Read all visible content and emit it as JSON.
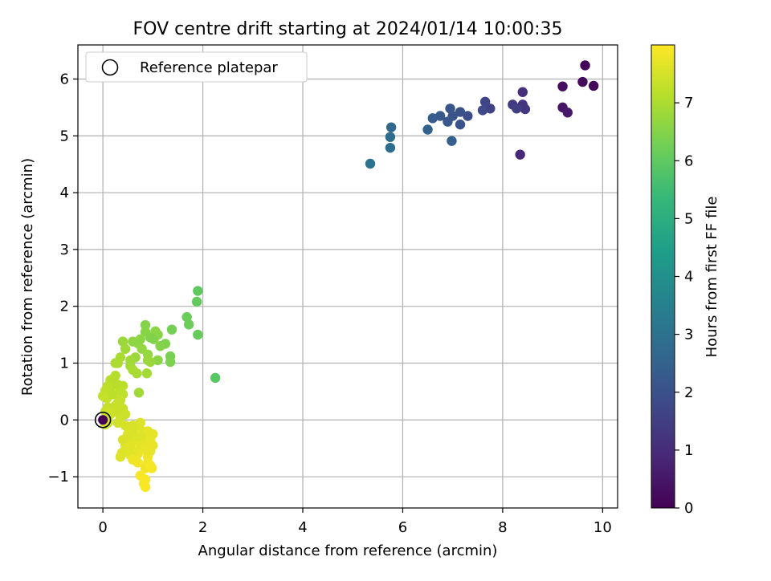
{
  "chart_data": {
    "type": "scatter",
    "title": "FOV centre drift starting at 2024/01/14 10:00:35",
    "xlabel": "Angular distance from reference (arcmin)",
    "ylabel": "Rotation from reference (arcmin)",
    "xlim": [
      -0.5,
      10.3
    ],
    "ylim": [
      -1.55,
      6.6
    ],
    "xticks": [
      0,
      2,
      4,
      6,
      8,
      10
    ],
    "yticks": [
      -1,
      0,
      1,
      2,
      3,
      4,
      5,
      6
    ],
    "xtick_labels": [
      "0",
      "2",
      "4",
      "6",
      "8",
      "10"
    ],
    "ytick_labels": [
      "−1",
      "0",
      "1",
      "2",
      "3",
      "4",
      "5",
      "6"
    ],
    "grid": true,
    "legend": {
      "placement": "top-left",
      "label": "Reference platepar"
    },
    "reference_point": {
      "x": 0,
      "y": 0
    },
    "colorbar": {
      "label": "Hours from first FF file",
      "range": [
        0,
        8
      ],
      "ticks": [
        0,
        1,
        2,
        3,
        4,
        5,
        6,
        7
      ],
      "tick_labels": [
        "0",
        "1",
        "2",
        "3",
        "4",
        "5",
        "6",
        "7"
      ],
      "colormap": "viridis",
      "colors": [
        "#440154",
        "#482878",
        "#3e4989",
        "#31688e",
        "#26828e",
        "#1f9e89",
        "#35b779",
        "#6ece58",
        "#b5de2b",
        "#fde725"
      ]
    },
    "series": [
      {
        "points": [
          [
            9.65,
            6.24,
            0.1
          ],
          [
            9.82,
            5.88,
            0.15
          ],
          [
            9.6,
            5.95,
            0.2
          ],
          [
            9.2,
            5.87,
            0.3
          ],
          [
            9.2,
            5.5,
            0.45
          ],
          [
            9.3,
            5.41,
            0.55
          ],
          [
            8.35,
            4.67,
            0.9
          ],
          [
            8.4,
            5.77,
            1.1
          ],
          [
            8.4,
            5.55,
            1.2
          ],
          [
            8.45,
            5.47,
            1.3
          ],
          [
            8.2,
            5.55,
            1.4
          ],
          [
            8.28,
            5.48,
            1.5
          ],
          [
            7.75,
            5.48,
            1.6
          ],
          [
            7.65,
            5.6,
            1.7
          ],
          [
            7.6,
            5.45,
            1.8
          ],
          [
            7.3,
            5.35,
            1.9
          ],
          [
            7.15,
            5.42,
            2.0
          ],
          [
            7.15,
            5.2,
            2.05
          ],
          [
            7.0,
            5.35,
            2.1
          ],
          [
            6.95,
            5.48,
            2.15
          ],
          [
            6.9,
            5.25,
            2.2
          ],
          [
            6.75,
            5.35,
            2.25
          ],
          [
            6.6,
            5.31,
            2.3
          ],
          [
            6.98,
            4.91,
            2.4
          ],
          [
            6.5,
            5.11,
            2.5
          ],
          [
            5.77,
            5.15,
            2.7
          ],
          [
            5.75,
            4.98,
            2.8
          ],
          [
            5.75,
            4.79,
            2.85
          ],
          [
            5.35,
            4.51,
            3.0
          ],
          [
            2.25,
            0.74,
            5.9
          ],
          [
            1.9,
            2.27,
            6.0
          ],
          [
            1.88,
            2.08,
            6.05
          ],
          [
            1.9,
            1.5,
            6.1
          ],
          [
            1.68,
            1.81,
            6.15
          ],
          [
            1.72,
            1.68,
            6.2
          ],
          [
            1.38,
            1.59,
            6.3
          ],
          [
            1.35,
            1.12,
            6.35
          ],
          [
            1.35,
            1.02,
            6.4
          ],
          [
            1.25,
            1.34,
            6.45
          ],
          [
            1.15,
            1.3,
            6.5
          ],
          [
            1.1,
            1.5,
            6.55
          ],
          [
            1.05,
            1.56,
            6.6
          ],
          [
            1.02,
            1.42,
            6.5
          ],
          [
            1.1,
            1.05,
            6.6
          ],
          [
            0.95,
            1.45,
            6.45
          ],
          [
            0.85,
            1.67,
            6.5
          ],
          [
            0.85,
            1.55,
            6.55
          ],
          [
            0.75,
            1.42,
            6.6
          ],
          [
            0.7,
            1.35,
            6.6
          ],
          [
            0.6,
            1.38,
            6.65
          ],
          [
            0.78,
            1.25,
            6.7
          ],
          [
            0.9,
            1.15,
            6.7
          ],
          [
            0.9,
            1.05,
            6.75
          ],
          [
            0.95,
            1.02,
            6.8
          ],
          [
            0.65,
            1.1,
            6.8
          ],
          [
            0.55,
            1.05,
            6.85
          ],
          [
            0.55,
            0.95,
            6.9
          ],
          [
            0.45,
            1.25,
            6.85
          ],
          [
            0.4,
            1.38,
            6.8
          ],
          [
            0.35,
            1.1,
            6.95
          ],
          [
            0.3,
            1.0,
            7.0
          ],
          [
            0.25,
            1.0,
            7.0
          ],
          [
            0.88,
            0.82,
            6.9
          ],
          [
            0.68,
            0.82,
            6.95
          ],
          [
            0.6,
            0.88,
            6.95
          ],
          [
            0.72,
            0.48,
            6.85
          ],
          [
            0.2,
            0.72,
            7.1
          ],
          [
            0.25,
            0.78,
            7.1
          ],
          [
            0.15,
            0.7,
            7.15
          ],
          [
            0.1,
            0.6,
            7.2
          ],
          [
            0.15,
            0.55,
            7.2
          ],
          [
            0.05,
            0.52,
            7.25
          ],
          [
            0.0,
            0.42,
            7.3
          ],
          [
            0.08,
            0.38,
            7.3
          ],
          [
            0.1,
            0.22,
            7.3
          ],
          [
            0.05,
            0.15,
            7.35
          ],
          [
            0.3,
            0.62,
            7.15
          ],
          [
            0.35,
            0.52,
            7.2
          ],
          [
            0.4,
            0.45,
            7.25
          ],
          [
            0.35,
            0.35,
            7.3
          ],
          [
            0.3,
            0.3,
            7.3
          ],
          [
            0.25,
            0.25,
            7.35
          ],
          [
            0.4,
            0.2,
            7.35
          ],
          [
            0.45,
            0.1,
            7.4
          ],
          [
            0.35,
            0.05,
            7.4
          ],
          [
            0.4,
            0.6,
            7.2
          ],
          [
            0.2,
            0.45,
            7.2
          ],
          [
            0.25,
            0.15,
            7.35
          ],
          [
            0.15,
            0.1,
            7.4
          ],
          [
            0.1,
            -0.05,
            7.45
          ],
          [
            0.05,
            -0.08,
            7.45
          ],
          [
            0.3,
            -0.05,
            7.45
          ],
          [
            0.45,
            -0.1,
            7.5
          ],
          [
            0.55,
            -0.15,
            7.55
          ],
          [
            0.6,
            -0.2,
            7.55
          ],
          [
            0.5,
            -0.25,
            7.6
          ],
          [
            0.65,
            -0.35,
            7.6
          ],
          [
            0.7,
            -0.1,
            7.55
          ],
          [
            0.75,
            -0.05,
            7.6
          ],
          [
            0.8,
            -0.2,
            7.65
          ],
          [
            0.85,
            -0.3,
            7.65
          ],
          [
            0.9,
            -0.2,
            7.7
          ],
          [
            0.95,
            -0.35,
            7.7
          ],
          [
            1.0,
            -0.45,
            7.75
          ],
          [
            0.95,
            -0.55,
            7.75
          ],
          [
            0.9,
            -0.65,
            7.8
          ],
          [
            0.8,
            -0.5,
            7.75
          ],
          [
            0.75,
            -0.45,
            7.7
          ],
          [
            0.7,
            -0.6,
            7.75
          ],
          [
            0.65,
            -0.7,
            7.8
          ],
          [
            0.6,
            -0.55,
            7.7
          ],
          [
            0.55,
            -0.62,
            7.65
          ],
          [
            0.5,
            -0.55,
            7.65
          ],
          [
            0.45,
            -0.45,
            7.6
          ],
          [
            0.4,
            -0.35,
            7.55
          ],
          [
            0.38,
            -0.58,
            7.6
          ],
          [
            0.35,
            -0.65,
            7.6
          ],
          [
            0.5,
            -0.3,
            7.55
          ],
          [
            0.85,
            -0.85,
            7.85
          ],
          [
            0.9,
            -0.75,
            7.85
          ],
          [
            0.95,
            -0.8,
            7.9
          ],
          [
            0.98,
            -0.85,
            7.9
          ],
          [
            0.75,
            -0.98,
            7.9
          ],
          [
            0.82,
            -1.12,
            7.95
          ],
          [
            0.85,
            -1.18,
            7.95
          ],
          [
            0.85,
            -1.05,
            7.95
          ],
          [
            0.7,
            -0.75,
            7.85
          ],
          [
            0.6,
            -0.7,
            7.8
          ],
          [
            0.55,
            -0.45,
            7.65
          ],
          [
            0.75,
            -0.3,
            7.6
          ],
          [
            0.82,
            -0.45,
            7.7
          ],
          [
            0.88,
            -0.55,
            7.75
          ],
          [
            1.0,
            -0.25,
            7.7
          ],
          [
            0.6,
            -0.1,
            7.5
          ]
        ]
      }
    ]
  }
}
